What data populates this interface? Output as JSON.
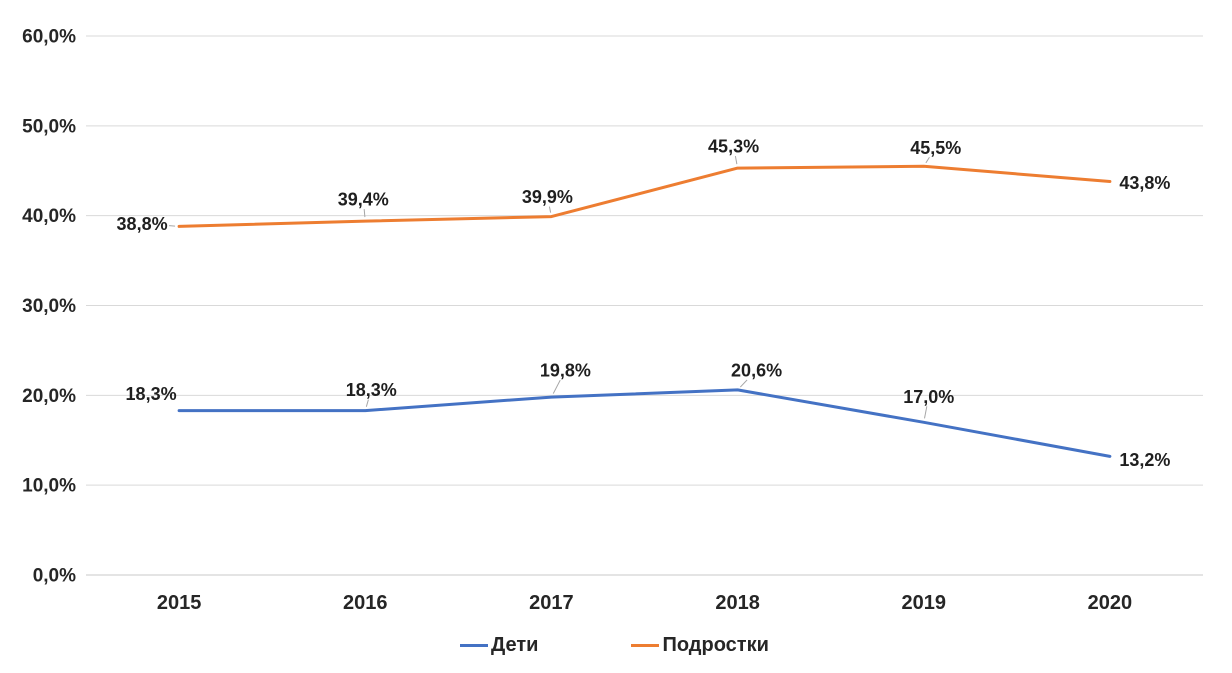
{
  "chart_data": {
    "type": "line",
    "categories": [
      "2015",
      "2016",
      "2017",
      "2018",
      "2019",
      "2020"
    ],
    "series": [
      {
        "name": "Дети",
        "slug": "children",
        "color": "#4472C4",
        "values": [
          18.3,
          18.3,
          19.8,
          20.6,
          17.0,
          13.2
        ],
        "point_labels": [
          "18,3%",
          "18,3%",
          "19,8%",
          "20,6%",
          "17,0%",
          "13,2%"
        ],
        "label_offsets": [
          [
            -28,
            -17
          ],
          [
            6,
            -21
          ],
          [
            14,
            -27
          ],
          [
            19,
            -20
          ],
          [
            5,
            -26
          ],
          [
            35,
            3
          ]
        ],
        "label_leaders": [
          false,
          true,
          true,
          true,
          true,
          false
        ]
      },
      {
        "name": "Подростки",
        "slug": "teenagers",
        "color": "#ED7D31",
        "values": [
          38.8,
          39.4,
          39.9,
          45.3,
          45.5,
          43.8
        ],
        "point_labels": [
          "38,8%",
          "39,4%",
          "39,9%",
          "45,3%",
          "45,5%",
          "43,8%"
        ],
        "label_offsets": [
          [
            -37,
            -3
          ],
          [
            -2,
            -22
          ],
          [
            -4,
            -20
          ],
          [
            -4,
            -22
          ],
          [
            12,
            -19
          ],
          [
            35,
            1
          ]
        ],
        "label_leaders": [
          true,
          true,
          true,
          true,
          true,
          false
        ]
      }
    ],
    "title": "",
    "xlabel": "",
    "ylabel": "",
    "ylim": [
      0,
      60
    ],
    "ytick_step": 10,
    "ytick_labels": [
      "0,0%",
      "10,0%",
      "20,0%",
      "30,0%",
      "40,0%",
      "50,0%",
      "60,0%"
    ],
    "grid": true,
    "legend_position": "bottom-center",
    "colors": {
      "gridline": "#D9D9D9",
      "axis_line": "#C9C9C9",
      "leader": "#A6A6A6",
      "text": "#262626"
    }
  }
}
